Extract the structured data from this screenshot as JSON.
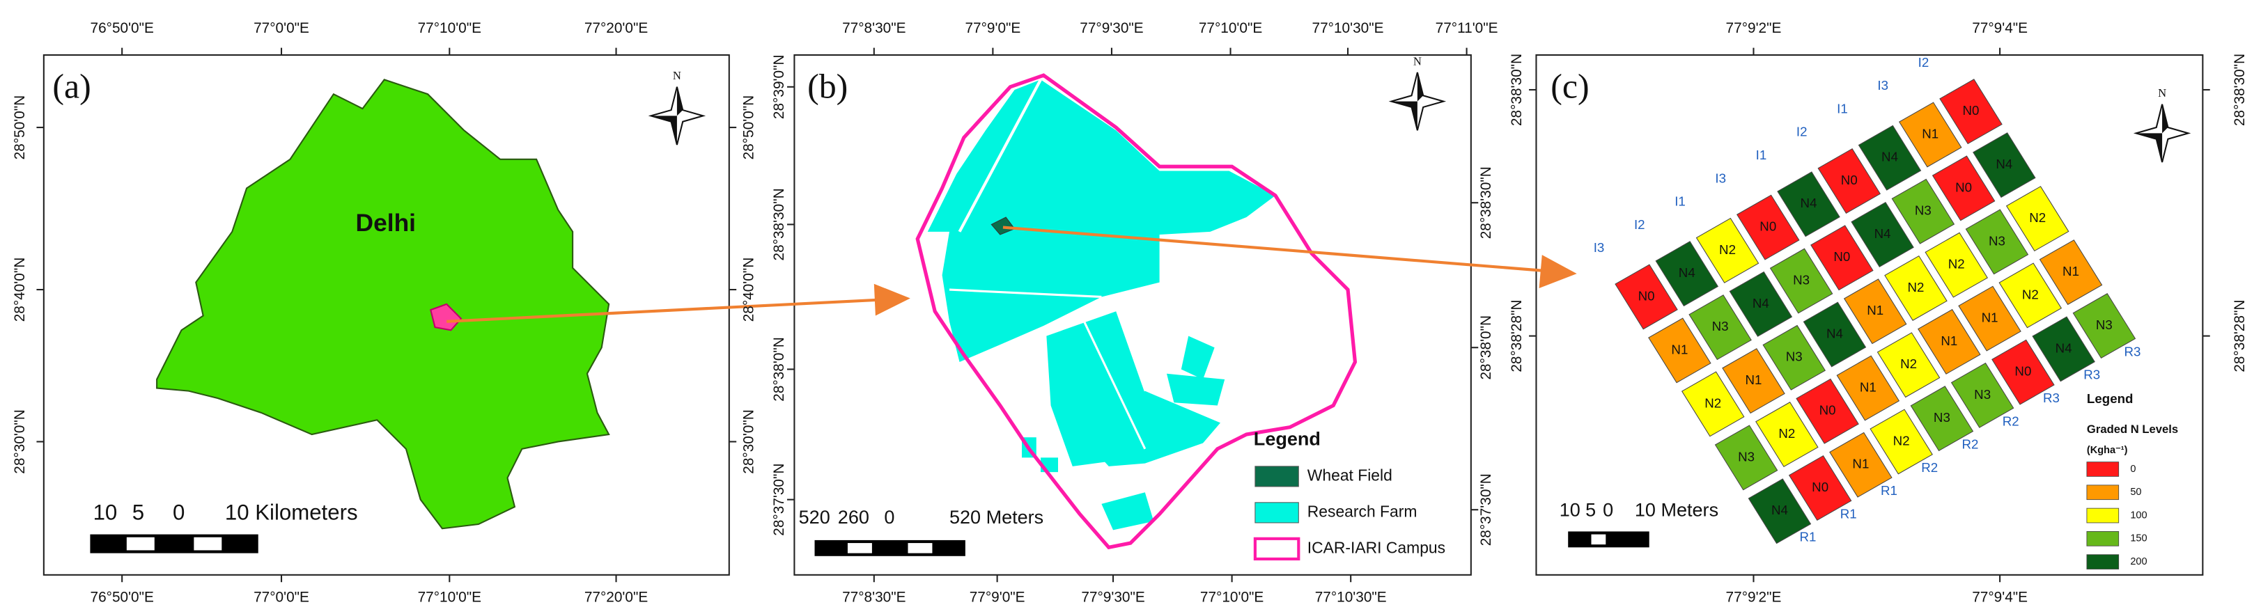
{
  "panel_a": {
    "label": "(a)",
    "north": "N",
    "place": "Delhi",
    "top_ticks": [
      "76°50'0\"E",
      "77°0'0\"E",
      "77°10'0\"E",
      "77°20'0\"E"
    ],
    "bottom_ticks": [
      "76°50'0\"E",
      "77°0'0\"E",
      "77°10'0\"E",
      "77°20'0\"E"
    ],
    "left_ticks": [
      "28°50'0\"N",
      "28°40'0\"N",
      "28°30'0\"N"
    ],
    "right_ticks": [
      "28°50'0\"N",
      "28°40'0\"N",
      "28°30'0\"N"
    ],
    "scale_bar": [
      "10",
      "5",
      "0",
      "10 Kilometers"
    ]
  },
  "panel_b": {
    "label": "(b)",
    "north": "N",
    "top_ticks": [
      "77°8'30\"E",
      "77°9'0\"E",
      "77°9'30\"E",
      "77°10'0\"E",
      "77°10'30\"E",
      "77°11'0\"E"
    ],
    "bottom_ticks": [
      "77°8'30\"E",
      "77°9'0\"E",
      "77°9'30\"E",
      "77°10'0\"E",
      "77°10'30\"E"
    ],
    "left_ticks": [
      "28°39'0\"N",
      "28°38'30\"N",
      "28°38'0\"N",
      "28°37'30\"N"
    ],
    "right_ticks": [
      "28°38'30\"N",
      "28°38'0\"N",
      "28°37'30\"N"
    ],
    "legend": {
      "title": "Legend",
      "items": [
        "Wheat Field",
        "Research Farm",
        "ICAR-IARI Campus"
      ]
    },
    "scale_bar": [
      "520",
      "260",
      "0",
      "520 Meters"
    ]
  },
  "panel_c": {
    "label": "(c)",
    "north": "N",
    "top_ticks": [
      "77°9'2\"E",
      "77°9'4\"E"
    ],
    "bottom_ticks": [
      "77°9'2\"E",
      "77°9'4\"E"
    ],
    "left_ticks": [
      "28°38'30\"N",
      "28°38'28\"N"
    ],
    "right_ticks": [
      "28°38'30\"N",
      "28°38'28\"N"
    ],
    "columns": [
      {
        "top": "I3",
        "bottom": "R1",
        "plots": [
          "N0",
          "N1",
          "N2",
          "N3",
          "N4"
        ]
      },
      {
        "top": "I2",
        "bottom": "R1",
        "plots": [
          "N4",
          "N3",
          "N1",
          "N2",
          "N0"
        ]
      },
      {
        "top": "I1",
        "bottom": "R1",
        "plots": [
          "N2",
          "N4",
          "N3",
          "N0",
          "N1"
        ]
      },
      {
        "top": "I3",
        "bottom": "R2",
        "plots": [
          "N0",
          "N3",
          "N4",
          "N1",
          "N2"
        ]
      },
      {
        "top": "I1",
        "bottom": "R2",
        "plots": [
          "N4",
          "N0",
          "N1",
          "N2",
          "N3"
        ]
      },
      {
        "top": "I2",
        "bottom": "R2",
        "plots": [
          "N0",
          "N4",
          "N2",
          "N1",
          "N3"
        ]
      },
      {
        "top": "I1",
        "bottom": "R3",
        "plots": [
          "N4",
          "N3",
          "N2",
          "N1",
          "N0"
        ]
      },
      {
        "top": "I3",
        "bottom": "R3",
        "plots": [
          "N1",
          "N0",
          "N3",
          "N2",
          "N4"
        ]
      },
      {
        "top": "I2",
        "bottom": "R3",
        "plots": [
          "N0",
          "N4",
          "N2",
          "N1",
          "N3"
        ]
      }
    ],
    "legend": {
      "title": "Legend",
      "subtitle": "Graded N Levels",
      "unit": "(Kgha⁻¹)",
      "levels": [
        {
          "label": "0",
          "color": "#ff1a1a"
        },
        {
          "label": "50",
          "color": "#ff9900"
        },
        {
          "label": "100",
          "color": "#ffff00"
        },
        {
          "label": "150",
          "color": "#66b81a"
        },
        {
          "label": "200",
          "color": "#0b5e1a"
        }
      ]
    },
    "scale_bar": [
      "10",
      "5",
      "0",
      "10 Meters"
    ]
  }
}
